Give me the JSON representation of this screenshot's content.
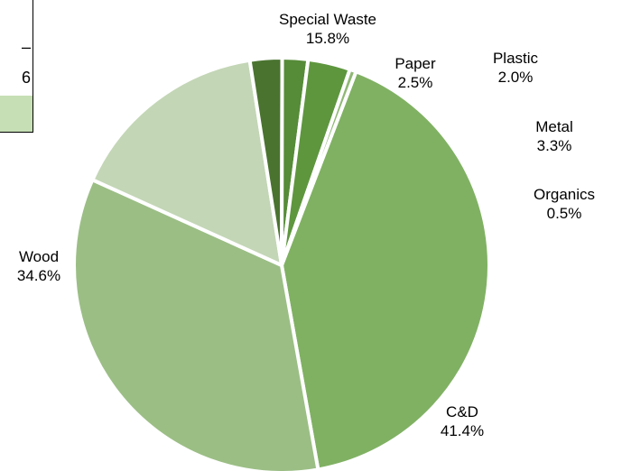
{
  "chart_data": {
    "type": "pie",
    "title": "",
    "categories": [
      "C&D",
      "Wood",
      "Special Waste",
      "Paper",
      "Plastic",
      "Metal",
      "Organics"
    ],
    "values": [
      41.4,
      34.6,
      15.8,
      2.5,
      2.0,
      3.3,
      0.5
    ],
    "value_labels": [
      "41.4%",
      "34.6%",
      "15.8%",
      "2.5%",
      "2.0%",
      "3.3%",
      "0.5%"
    ],
    "colors": [
      "#80b163",
      "#9bbe85",
      "#c3d6b6",
      "#4a7330",
      "#568b38",
      "#5e963e",
      "#8fb874"
    ],
    "legend": "none",
    "data_labels": "outside"
  },
  "panel_fragment": {
    "text_top": "–",
    "text_bottom": "6",
    "swatch_color": "#c6dfb5"
  }
}
